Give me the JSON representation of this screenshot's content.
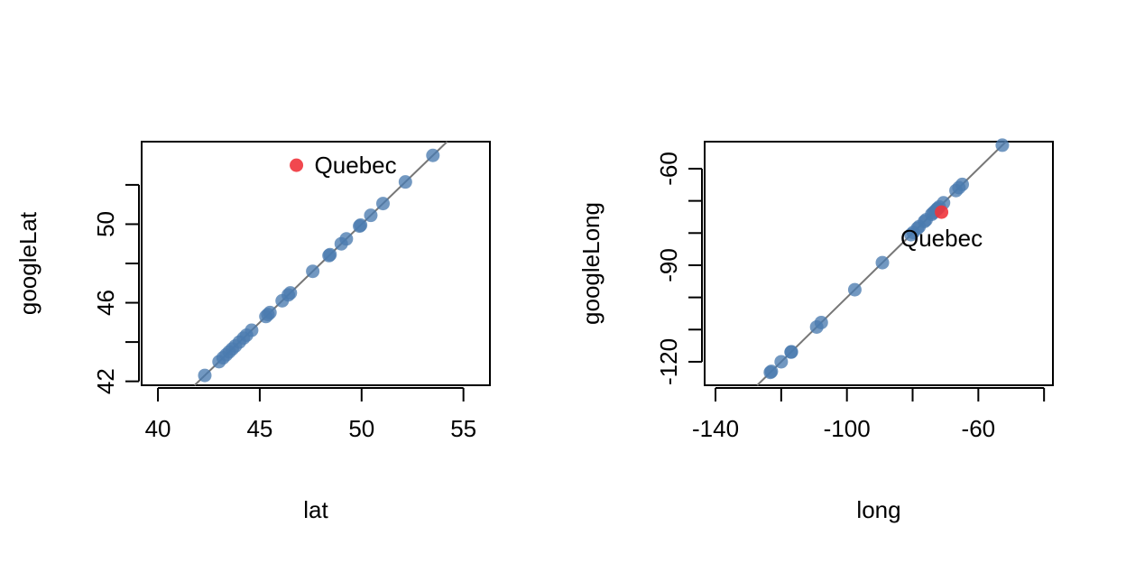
{
  "chart_data": [
    {
      "type": "scatter",
      "xlabel": "lat",
      "ylabel": "googleLat",
      "xlim": [
        39.2,
        56.3
      ],
      "ylim": [
        41.8,
        54.2
      ],
      "xticks": [
        "40",
        "45",
        "50",
        "55"
      ],
      "yticks": [
        "42",
        "44",
        "46",
        "48",
        "50",
        "52"
      ],
      "ytick_labels": [
        "42",
        "",
        "46",
        "",
        "50",
        ""
      ],
      "reference_line": "y = x",
      "point_color": "#4a7bb0",
      "highlight_color": "#f0343c",
      "series": [
        {
          "x": [
            42.3,
            43.0,
            43.2,
            43.35,
            43.5,
            43.65,
            43.8,
            44.0,
            44.2,
            44.35,
            44.6,
            45.3,
            45.4,
            45.5,
            46.1,
            46.4,
            46.5,
            47.6,
            48.4,
            48.45,
            49.0,
            49.25,
            49.9,
            49.95,
            50.45,
            51.05,
            52.15,
            53.5
          ],
          "y": [
            42.3,
            43.0,
            43.2,
            43.35,
            43.5,
            43.65,
            43.8,
            44.0,
            44.2,
            44.35,
            44.6,
            45.3,
            45.4,
            45.5,
            46.1,
            46.4,
            46.5,
            47.6,
            48.4,
            48.45,
            49.0,
            49.25,
            49.9,
            49.95,
            50.45,
            51.05,
            52.15,
            53.5
          ]
        },
        {
          "label": "Quebec",
          "x": [
            46.8
          ],
          "y": [
            53.0
          ]
        }
      ]
    },
    {
      "type": "scatter",
      "xlabel": "long",
      "ylabel": "googleLong",
      "xlim": [
        -143.3,
        -37.3
      ],
      "ylim": [
        -127.3,
        -51.6
      ],
      "xticks": [
        "-140",
        "-120",
        "-100",
        "-80",
        "-60",
        "-40"
      ],
      "xtick_labels": [
        "-140",
        "",
        "-100",
        "",
        "-60",
        ""
      ],
      "yticks": [
        "-60",
        "-70",
        "-80",
        "-90",
        "-100",
        "-110",
        "-120"
      ],
      "ytick_labels": [
        "-60",
        "",
        "",
        "-90",
        "",
        "",
        "-120"
      ],
      "reference_line": "y = x",
      "point_color": "#4a7bb0",
      "highlight_color": "#f0343c",
      "series": [
        {
          "x": [
            -123.3,
            -123.0,
            -120.0,
            -117.0,
            -116.9,
            -109.2,
            -107.8,
            -97.6,
            -89.2,
            -80.5,
            -79.8,
            -78.5,
            -78.0,
            -76.4,
            -75.9,
            -74.2,
            -73.7,
            -73.2,
            -72.6,
            -72.4,
            -71.9,
            -70.6,
            -66.8,
            -65.9,
            -64.9,
            -52.7
          ],
          "y": [
            -123.3,
            -123.0,
            -120.0,
            -117.0,
            -116.9,
            -109.2,
            -107.8,
            -97.6,
            -89.2,
            -80.5,
            -79.8,
            -78.5,
            -78.0,
            -76.4,
            -75.9,
            -74.2,
            -73.7,
            -73.2,
            -72.6,
            -72.4,
            -71.9,
            -70.6,
            -66.8,
            -65.9,
            -64.9,
            -52.7
          ]
        },
        {
          "label": "Quebec",
          "x": [
            -71.2
          ],
          "y": [
            -73.5
          ]
        }
      ]
    }
  ]
}
